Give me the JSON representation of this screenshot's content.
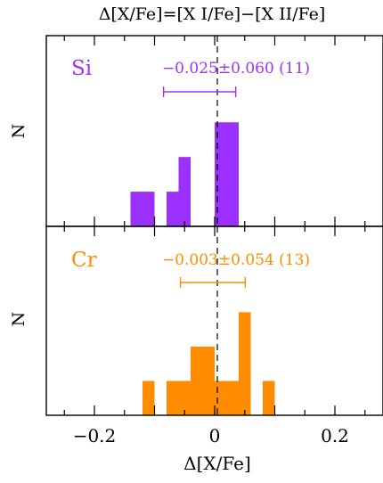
{
  "title": "Δ[X/Fe]=[X I/Fe]−[X II/Fe]",
  "chart_data": {
    "type": "histogram",
    "title": "Δ[X/Fe]=[X I/Fe]−[X II/Fe]",
    "xlabel": "Δ[X/Fe]",
    "xlim": [
      -0.28,
      0.28
    ],
    "x_ticks": [
      -0.2,
      0,
      0.2
    ],
    "x_tick_labels": [
      "−0.2",
      "0",
      "0.2"
    ],
    "bin_width": 0.02,
    "panels": [
      {
        "element": "Si",
        "ylabel": "N",
        "color": "#9B30FF",
        "stat_label": "−0.025±0.060 (11)",
        "mean": -0.025,
        "sigma": 0.06,
        "n": 11,
        "ymax": 5.5,
        "bins": [
          {
            "x0": -0.14,
            "x1": -0.12,
            "count": 1
          },
          {
            "x0": -0.12,
            "x1": -0.1,
            "count": 1
          },
          {
            "x0": -0.08,
            "x1": -0.06,
            "count": 1
          },
          {
            "x0": -0.06,
            "x1": -0.04,
            "count": 2
          },
          {
            "x0": 0.0,
            "x1": 0.02,
            "count": 3
          },
          {
            "x0": 0.02,
            "x1": 0.04,
            "count": 3
          }
        ]
      },
      {
        "element": "Cr",
        "ylabel": "N",
        "color": "#FF8C00",
        "stat_label": "−0.003±0.054 (13)",
        "mean": -0.003,
        "sigma": 0.054,
        "n": 13,
        "ymax": 5.5,
        "bins": [
          {
            "x0": -0.12,
            "x1": -0.1,
            "count": 1
          },
          {
            "x0": -0.08,
            "x1": -0.06,
            "count": 1
          },
          {
            "x0": -0.06,
            "x1": -0.04,
            "count": 1
          },
          {
            "x0": -0.04,
            "x1": -0.02,
            "count": 2
          },
          {
            "x0": -0.02,
            "x1": 0.0,
            "count": 2
          },
          {
            "x0": 0.0,
            "x1": 0.02,
            "count": 1
          },
          {
            "x0": 0.02,
            "x1": 0.04,
            "count": 1
          },
          {
            "x0": 0.04,
            "x1": 0.06,
            "count": 3
          },
          {
            "x0": 0.08,
            "x1": 0.1,
            "count": 1
          }
        ]
      }
    ]
  }
}
